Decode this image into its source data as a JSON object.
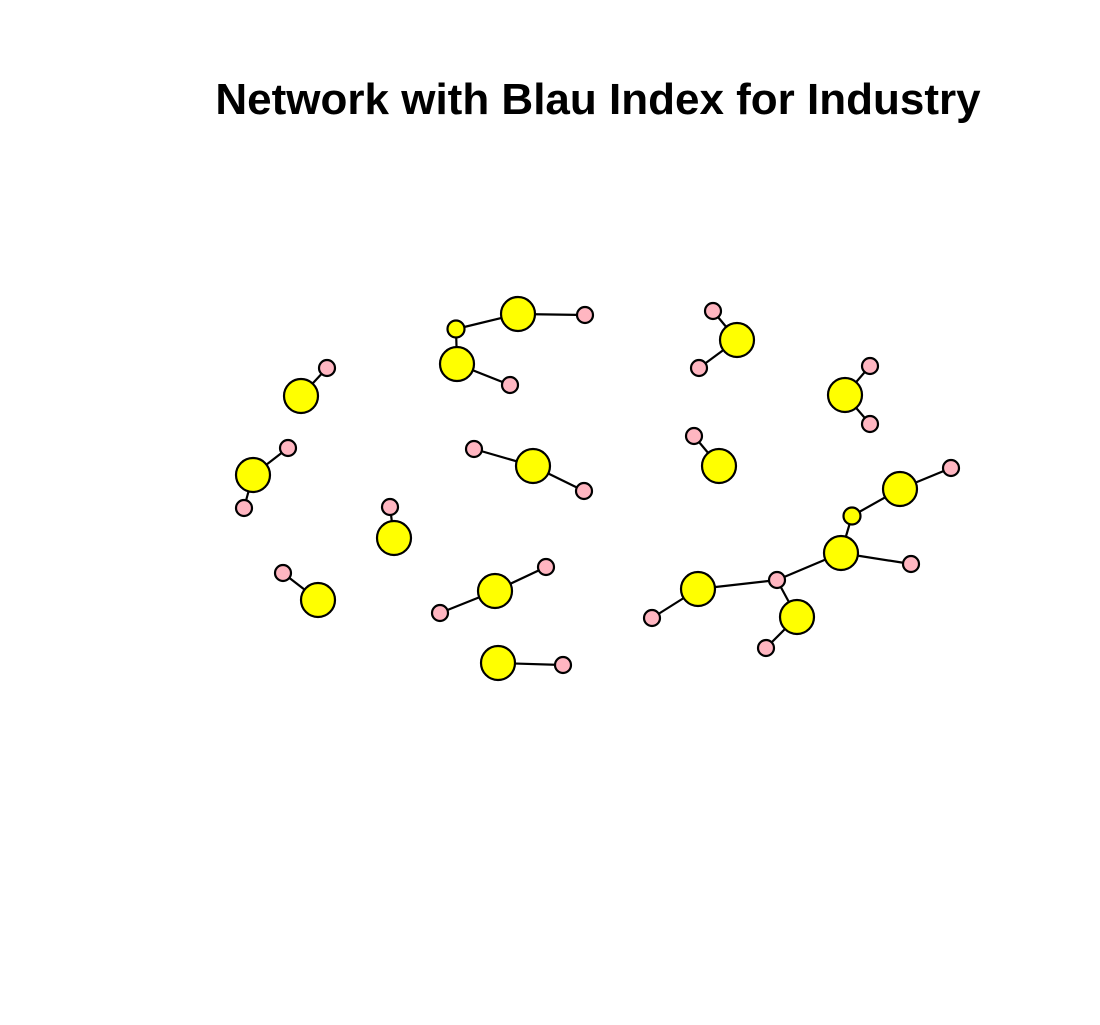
{
  "title": "Network with Blau Index for Industry",
  "colors": {
    "focal_node": "#ffff00",
    "alter_node": "#ffb6c1",
    "edge": "#000000",
    "node_border": "#000000"
  },
  "node_types": {
    "large_yellow": "focal",
    "small_yellow": "focal-small",
    "pink": "alter"
  }
}
